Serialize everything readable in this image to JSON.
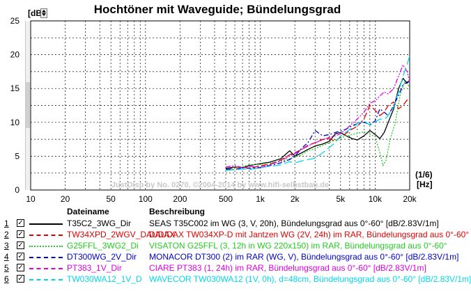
{
  "title": "Hochtöner mit Waveguide; Bündelungsgrad",
  "y_unit": "[dB]",
  "x_unit_top": "(1/6)",
  "x_unit_bottom": "[Hz]",
  "watermark": "JustDisp by No. 0270, ©2004-2014 by www.hifi-selbstbau.de",
  "legend": {
    "header_file": "Dateiname",
    "header_desc": "Beschreibung",
    "items": [
      {
        "num": "1",
        "checked": "✓",
        "file": "T35C2_3WG_Dir",
        "desc": "SEAS T35C002 im WG (3, V, 20h), Bündelungsgrad aus 0°-60° [dB/2.83V/1m]",
        "color": "#000000",
        "dash": "solid"
      },
      {
        "num": "2",
        "checked": "✓",
        "file": "TW34XPD_2WGV_DAUDAX",
        "desc": "DAUDAX TW034XP-D mit Jantzen WG (2V, 24h) im RAR, Bündelungsgrad aus 0°-60°",
        "color": "#e00000",
        "dash": "long"
      },
      {
        "num": "3",
        "checked": "✓",
        "file": "G25FFL_3WG2_Di",
        "desc": "VISATON G25FFL (3, 12h in WG 220x150) im RAR, Bündelungsgrad aus 0°-60°",
        "color": "#22cc22",
        "dash": "dot"
      },
      {
        "num": "4",
        "checked": "✓",
        "file": "DT300WG_2V_Dir",
        "desc": "MONACOR DT300 (2) im RAR (WG, V), Bündelungsgrad aus 0°-60° [dB/2.83V/1m]",
        "color": "#0000cc",
        "dash": "dashdot"
      },
      {
        "num": "5",
        "checked": "✓",
        "file": "PT383_1V_Dir",
        "desc": "CIARE PT383 (1, 24h) im RAR, Bündelungsgrad aus 0°-60° [dB/2.83V/1m]",
        "color": "#e000e0",
        "dash": "dashdotdot"
      },
      {
        "num": "6",
        "checked": "✓",
        "file": "TW030WA12_1V_D",
        "desc": "WAVECOR TW030WA12 (1V, 0h), d=48cm, Bündelungsgrad aus 0°-60° [dB/2.83V/1m]",
        "color": "#00d8e8",
        "dash": "longdash"
      }
    ]
  },
  "chart_data": {
    "type": "line",
    "title": "Hochtöner mit Waveguide; Bündelungsgrad",
    "xlabel": "(1/6) [Hz]",
    "ylabel": "[dB]",
    "xscale": "log",
    "xlim": [
      10,
      20000
    ],
    "ylim": [
      0,
      25
    ],
    "grid": true,
    "xticks": [
      10,
      20,
      50,
      100,
      200,
      500,
      1000,
      2000,
      5000,
      10000,
      20000
    ],
    "xtick_labels": [
      "10",
      "20",
      "50",
      "100",
      "200",
      "500",
      "1k",
      "2k",
      "5k",
      "10k",
      "20k"
    ],
    "yticks": [
      0,
      5,
      10,
      15,
      20,
      25
    ],
    "ytick_labels": [
      "0",
      "5",
      "10",
      "15",
      "20",
      "25"
    ],
    "series": [
      {
        "name": "T35C2_3WG_Dir",
        "color": "#000000",
        "x": [
          500,
          600,
          700,
          800,
          1000,
          1200,
          1500,
          1800,
          2000,
          2300,
          2600,
          3000,
          3500,
          4000,
          4500,
          5000,
          5600,
          6300,
          7000,
          8000,
          9000,
          10000,
          11000,
          12000,
          13000,
          14500,
          16000,
          17500,
          19000,
          20000
        ],
        "y": [
          3.2,
          3.4,
          3.3,
          3.6,
          3.9,
          4.1,
          4.6,
          5.8,
          5.0,
          5.5,
          6.0,
          6.5,
          6.8,
          7.2,
          8.3,
          8.5,
          8.0,
          7.6,
          7.4,
          8.0,
          8.8,
          8.2,
          7.6,
          8.5,
          10.0,
          12.0,
          15.0,
          16.5,
          15.8,
          16.2
        ]
      },
      {
        "name": "TW34XPD_2WGV_DAUDAX",
        "color": "#e00000",
        "x": [
          500,
          600,
          700,
          800,
          1000,
          1200,
          1500,
          1800,
          2000,
          2300,
          2600,
          3000,
          3500,
          4000,
          4500,
          5000,
          5600,
          6300,
          7000,
          8000,
          9000,
          10000,
          11000,
          12000,
          13000,
          14500,
          16000,
          17500,
          19000,
          20000
        ],
        "y": [
          3.0,
          3.3,
          3.4,
          3.2,
          3.6,
          3.8,
          4.4,
          5.2,
          5.5,
          6.0,
          6.6,
          7.0,
          7.5,
          7.6,
          7.2,
          7.8,
          8.4,
          9.0,
          9.4,
          10.5,
          12.5,
          11.8,
          11.0,
          11.5,
          12.5,
          13.0,
          12.0,
          12.5,
          13.3,
          13.2
        ]
      },
      {
        "name": "G25FFL_3WG2_Di",
        "color": "#22cc22",
        "x": [
          500,
          600,
          700,
          800,
          1000,
          1200,
          1500,
          1800,
          2000,
          2300,
          2600,
          3000,
          3500,
          4000,
          4500,
          5000,
          5600,
          6300,
          7000,
          8000,
          9000,
          10000,
          11000,
          11700,
          12500,
          13500,
          15000,
          16500,
          18000,
          20000
        ],
        "y": [
          3.0,
          3.2,
          3.5,
          3.7,
          3.8,
          4.0,
          4.2,
          4.6,
          4.9,
          5.2,
          5.8,
          6.1,
          6.6,
          7.0,
          7.4,
          7.7,
          8.0,
          8.2,
          8.4,
          8.6,
          8.2,
          7.9,
          5.5,
          3.6,
          4.5,
          7.5,
          10.0,
          14.0,
          16.0,
          15.3
        ]
      },
      {
        "name": "DT300WG_2V_Dir",
        "color": "#0000cc",
        "x": [
          500,
          600,
          700,
          800,
          1000,
          1200,
          1500,
          1800,
          2000,
          2300,
          2600,
          3000,
          3500,
          4000,
          4500,
          5000,
          5600,
          6300,
          7000,
          8000,
          9000,
          10000,
          11000,
          12000,
          13000,
          14500,
          16000,
          17500,
          19000,
          20000
        ],
        "y": [
          3.1,
          3.0,
          3.3,
          3.2,
          3.3,
          3.6,
          4.0,
          4.5,
          5.0,
          6.2,
          7.0,
          8.8,
          8.0,
          8.2,
          8.5,
          8.7,
          9.0,
          9.5,
          9.8,
          10.0,
          9.7,
          10.2,
          12.0,
          11.5,
          11.0,
          12.5,
          14.0,
          15.5,
          16.0,
          15.7
        ]
      },
      {
        "name": "PT383_1V_Dir",
        "color": "#e000e0",
        "x": [
          500,
          600,
          700,
          800,
          1000,
          1200,
          1500,
          1800,
          2000,
          2300,
          2600,
          3000,
          3500,
          4000,
          4500,
          5000,
          5600,
          6300,
          7000,
          8000,
          9000,
          10000,
          11000,
          12000,
          13000,
          14500,
          16000,
          17500,
          19000,
          20000
        ],
        "y": [
          3.4,
          3.6,
          3.3,
          3.5,
          3.4,
          3.7,
          4.3,
          5.0,
          5.4,
          6.0,
          6.5,
          7.0,
          7.4,
          7.8,
          8.0,
          8.3,
          9.0,
          9.8,
          10.5,
          11.5,
          12.8,
          13.2,
          13.9,
          14.5,
          14.2,
          15.0,
          16.8,
          18.5,
          17.5,
          16.0
        ]
      },
      {
        "name": "TW030WA12_1V_D",
        "color": "#00d8e8",
        "x": [
          500,
          600,
          700,
          800,
          1000,
          1200,
          1500,
          1800,
          2000,
          2300,
          2600,
          3000,
          3500,
          4000,
          4500,
          5000,
          5600,
          6300,
          7000,
          8000,
          9000,
          10000,
          11000,
          12000,
          13000,
          14500,
          16000,
          17500,
          19000,
          20000
        ],
        "y": [
          2.9,
          3.0,
          3.1,
          3.0,
          3.3,
          3.5,
          3.7,
          4.2,
          4.0,
          4.3,
          4.5,
          4.7,
          5.5,
          6.3,
          7.0,
          8.0,
          8.6,
          9.2,
          9.8,
          10.2,
          9.6,
          10.0,
          10.5,
          10.4,
          11.0,
          12.3,
          14.5,
          16.8,
          18.6,
          19.8
        ]
      }
    ]
  }
}
